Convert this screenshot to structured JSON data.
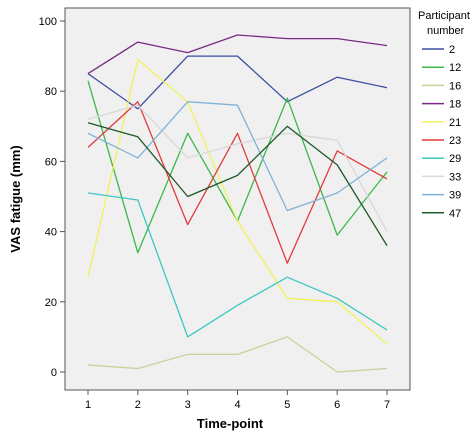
{
  "chart_data": {
    "type": "line",
    "xlabel": "Time-point",
    "ylabel": "VAS fatigue (mm)",
    "x": [
      1,
      2,
      3,
      4,
      5,
      6,
      7
    ],
    "x_tick_labels": [
      "1",
      "2",
      "3",
      "4",
      "5",
      "6",
      "7"
    ],
    "ylim": [
      0,
      100
    ],
    "y_ticks": [
      0,
      20,
      40,
      60,
      80,
      100
    ],
    "y_tick_labels": [
      "0",
      "20",
      "40",
      "60",
      "80",
      "100"
    ],
    "grid": false,
    "legend_title_lines": [
      "Participant",
      "number"
    ],
    "legend_position": "right",
    "series": [
      {
        "name": "2",
        "color": "#3b4ea0",
        "values": [
          85,
          75,
          90,
          90,
          77,
          84,
          81
        ]
      },
      {
        "name": "12",
        "color": "#3cb84a",
        "values": [
          83,
          34,
          68,
          43,
          78,
          39,
          57
        ]
      },
      {
        "name": "16",
        "color": "#cfcf9a",
        "values": [
          2,
          1,
          5,
          5,
          10,
          0,
          1
        ]
      },
      {
        "name": "18",
        "color": "#7a2a85",
        "values": [
          85,
          94,
          91,
          96,
          95,
          95,
          93
        ]
      },
      {
        "name": "21",
        "color": "#f2f25c",
        "values": [
          27,
          89,
          77,
          43,
          21,
          20,
          8
        ]
      },
      {
        "name": "23",
        "color": "#e03c3c",
        "values": [
          64,
          77,
          42,
          68,
          31,
          63,
          55
        ]
      },
      {
        "name": "29",
        "color": "#3cc8c0",
        "values": [
          51,
          49,
          10,
          19,
          27,
          21,
          12
        ]
      },
      {
        "name": "33",
        "color": "#d8d8d8",
        "values": [
          72,
          76,
          61,
          65,
          68,
          66,
          40
        ]
      },
      {
        "name": "39",
        "color": "#80b2d8",
        "values": [
          68,
          61,
          77,
          76,
          46,
          51,
          61
        ]
      },
      {
        "name": "47",
        "color": "#1f5a2a",
        "values": [
          71,
          67,
          50,
          56,
          70,
          59,
          36
        ]
      }
    ]
  }
}
